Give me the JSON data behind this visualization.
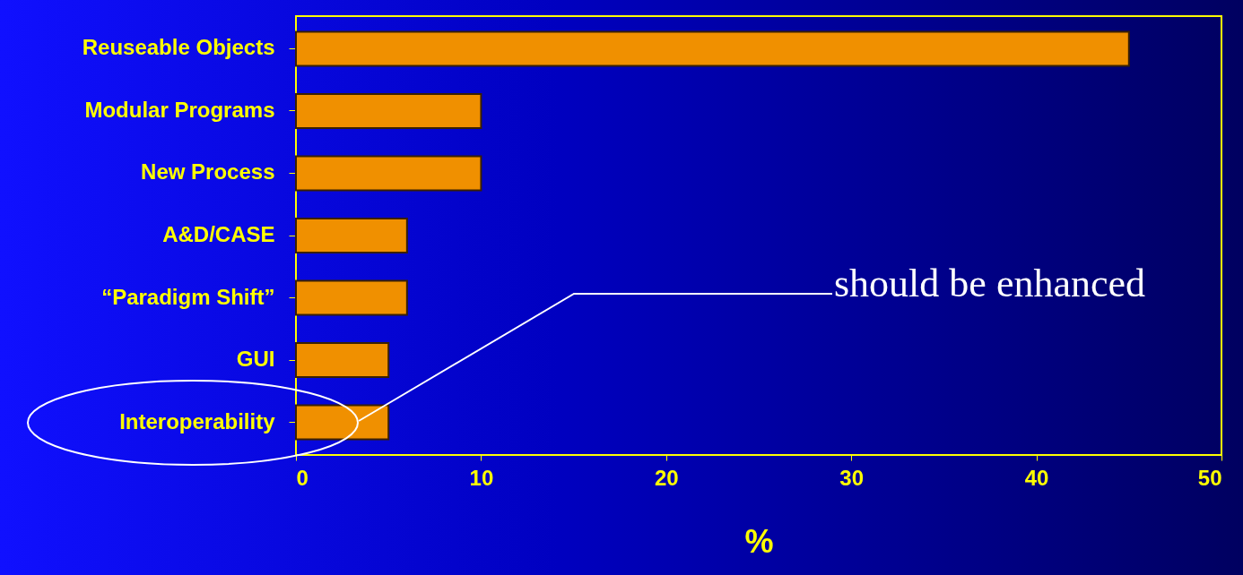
{
  "chart_data": {
    "type": "bar",
    "orientation": "horizontal",
    "xlabel": "%",
    "categories": [
      "Reuseable Objects",
      "Modular Programs",
      "New Process",
      "A&D/CASE",
      "“Paradigm Shift”",
      "GUI",
      "Interoperability"
    ],
    "values": [
      45,
      10,
      10,
      6,
      6,
      5,
      5
    ],
    "color": "#f09000",
    "xlim": [
      0,
      50
    ],
    "xticks": [
      0,
      10,
      20,
      30,
      40,
      50
    ],
    "grid": false,
    "annotations": [
      "should be enhanced"
    ]
  }
}
